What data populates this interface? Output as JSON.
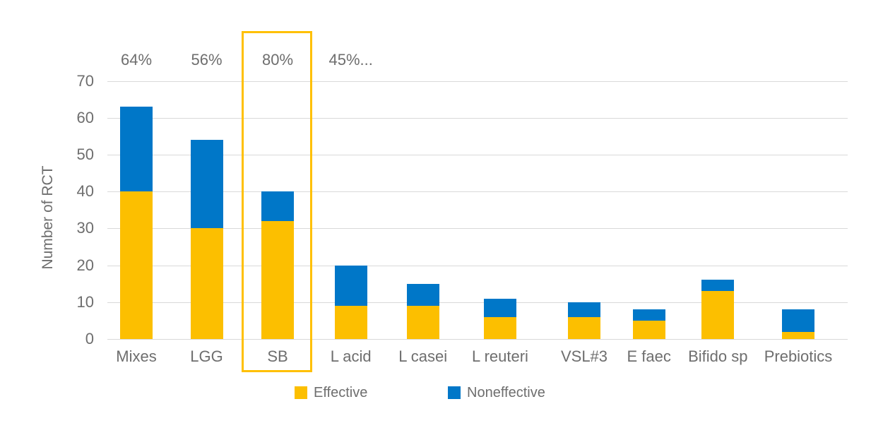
{
  "chart_data": {
    "type": "bar",
    "stacked": true,
    "title": "",
    "xlabel": "",
    "ylabel": "Number of RCT",
    "ylim": [
      0,
      70
    ],
    "yticks": [
      0,
      10,
      20,
      30,
      40,
      50,
      60,
      70
    ],
    "grid": "horizontal",
    "legend_position": "bottom",
    "categories": [
      "Mixes",
      "LGG",
      "SB",
      "L acid",
      "L casei",
      "L reuteri",
      "VSL#3",
      "E faec",
      "Bifido sp",
      "Prebiotics"
    ],
    "series": [
      {
        "name": "Effective",
        "color": "#fcbf00",
        "values": [
          40,
          30,
          32,
          9,
          9,
          6,
          6,
          5,
          13,
          2
        ]
      },
      {
        "name": "Noneffective",
        "color": "#0077c8",
        "values": [
          23,
          24,
          8,
          11,
          6,
          5,
          4,
          3,
          3,
          6
        ]
      }
    ],
    "totals": [
      63,
      54,
      40,
      20,
      15,
      11,
      10,
      8,
      16,
      8
    ],
    "annotations": [
      {
        "category": "Mixes",
        "text": "64%"
      },
      {
        "category": "LGG",
        "text": "56%"
      },
      {
        "category": "SB",
        "text": "80%"
      },
      {
        "category": "L acid",
        "text": "45%..."
      }
    ],
    "highlight": {
      "category": "SB",
      "color": "#ffc000"
    }
  }
}
